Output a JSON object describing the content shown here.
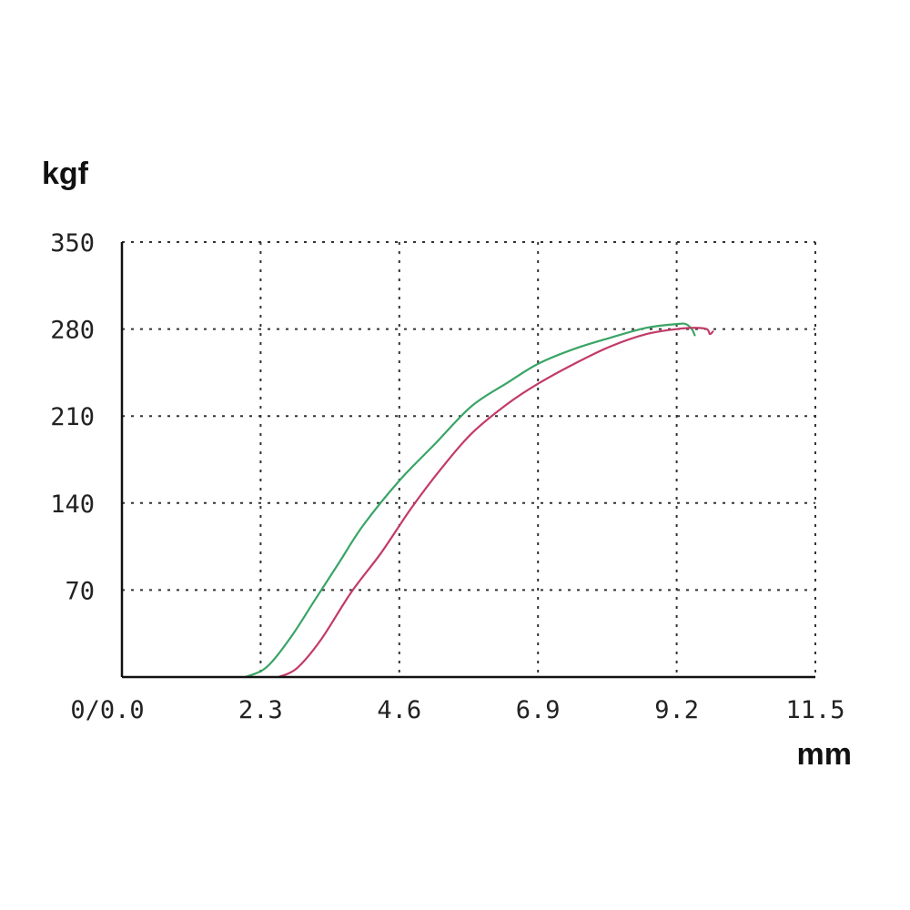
{
  "chart_data": {
    "type": "line",
    "ylabel": "kgf",
    "xlabel": "mm",
    "origin_label": "0/0.0",
    "xlim": [
      0,
      11.5
    ],
    "ylim": [
      0,
      350
    ],
    "x_ticks": [
      2.3,
      4.6,
      6.9,
      9.2,
      11.5
    ],
    "x_tick_labels": [
      "2.3",
      "4.6",
      "6.9",
      "9.2",
      "11.5"
    ],
    "y_ticks": [
      70,
      140,
      210,
      280,
      350
    ],
    "y_tick_labels": [
      "70",
      "140",
      "210",
      "280",
      "350"
    ],
    "grid": true,
    "series": [
      {
        "color": "#3aa466",
        "points": [
          [
            2.05,
            0
          ],
          [
            2.4,
            8
          ],
          [
            2.8,
            32
          ],
          [
            3.2,
            62
          ],
          [
            3.6,
            92
          ],
          [
            4.0,
            122
          ],
          [
            4.6,
            158
          ],
          [
            5.2,
            188
          ],
          [
            5.8,
            218
          ],
          [
            6.4,
            237
          ],
          [
            6.9,
            252
          ],
          [
            7.5,
            264
          ],
          [
            8.1,
            273
          ],
          [
            8.7,
            281
          ],
          [
            9.2,
            284
          ],
          [
            9.35,
            284
          ],
          [
            9.45,
            280
          ],
          [
            9.5,
            275
          ]
        ]
      },
      {
        "color": "#c23a68",
        "points": [
          [
            2.6,
            0
          ],
          [
            2.9,
            7
          ],
          [
            3.3,
            30
          ],
          [
            3.8,
            68
          ],
          [
            4.3,
            100
          ],
          [
            4.8,
            136
          ],
          [
            5.3,
            168
          ],
          [
            5.8,
            196
          ],
          [
            6.4,
            220
          ],
          [
            6.9,
            236
          ],
          [
            7.5,
            252
          ],
          [
            8.1,
            266
          ],
          [
            8.7,
            276
          ],
          [
            9.2,
            280
          ],
          [
            9.5,
            281
          ],
          [
            9.7,
            280
          ],
          [
            9.75,
            276
          ],
          [
            9.8,
            278
          ]
        ]
      }
    ]
  }
}
